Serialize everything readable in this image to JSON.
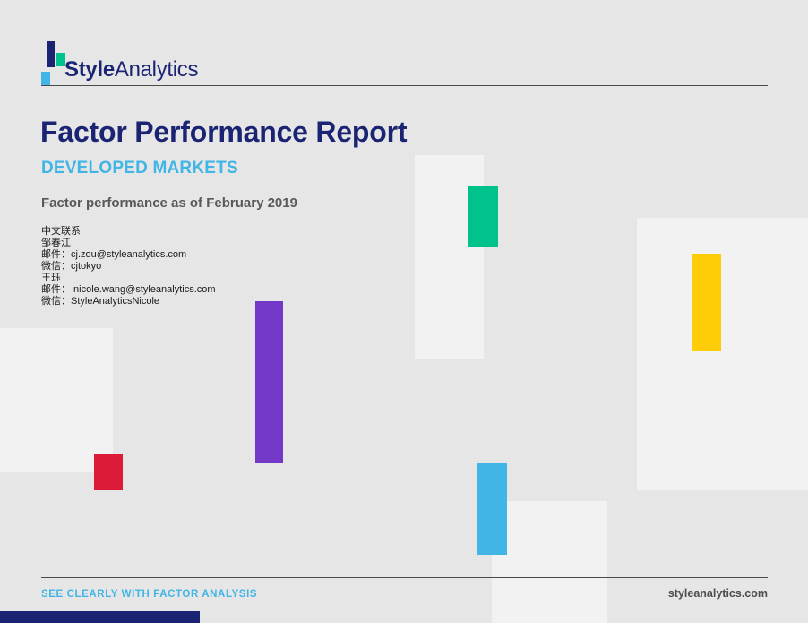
{
  "colors": {
    "bg": "#e6e6e6",
    "panel": "#f2f2f2",
    "navy": "#1a2473",
    "blue": "#41b5e5",
    "green": "#00c28a",
    "purple": "#7338c8",
    "red": "#dc1b38",
    "yellow": "#ffcd07",
    "gray": "#595959",
    "rule": "#4a4a4a"
  },
  "brand": {
    "name_bold": "Style",
    "name_regular": "Analytics"
  },
  "header": {
    "title": "Factor Performance Report",
    "subtitle": "DEVELOPED MARKETS",
    "dateline": "Factor performance as of February 2019"
  },
  "contact": {
    "lines": [
      "中文联系",
      "邹春江",
      "邮件：cj.zou@styleanalytics.com",
      "微信：cjtokyo",
      "王珏",
      "邮件： nicole.wang@styleanalytics.com",
      "微信：StyleAnalyticsNicole"
    ]
  },
  "footer": {
    "tagline": "SEE CLEARLY WITH FACTOR ANALYSIS",
    "website": "styleanalytics.com"
  }
}
